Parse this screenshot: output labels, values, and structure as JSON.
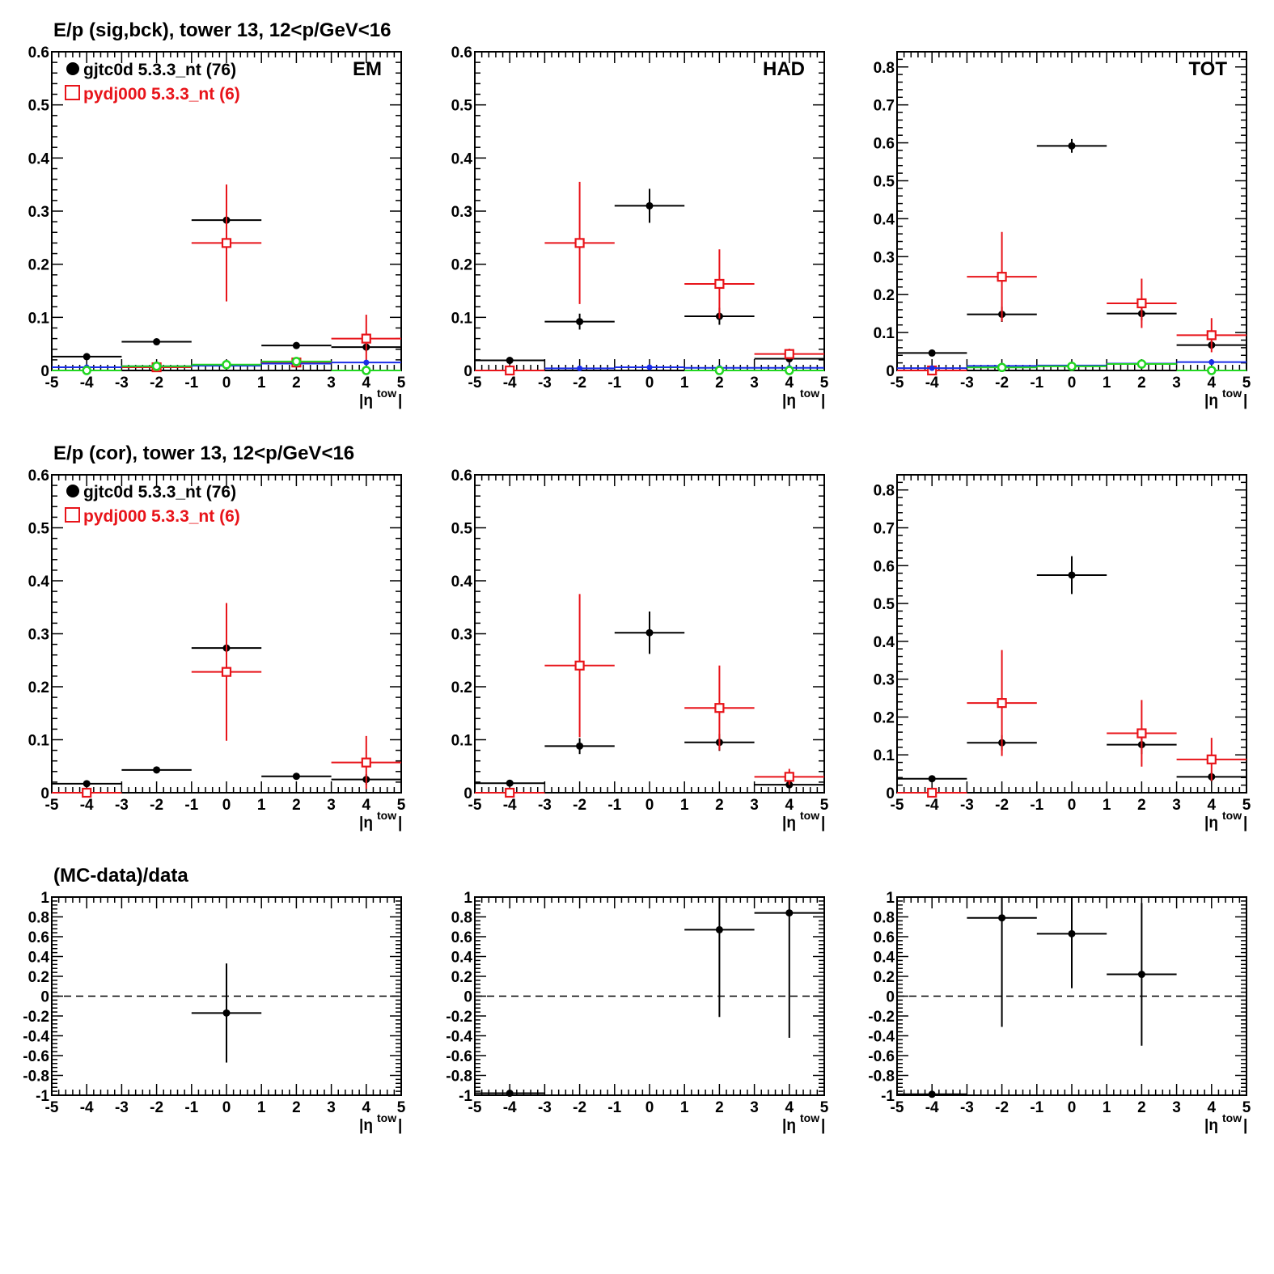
{
  "row_titles": [
    "E/p (sig,bck), tower 13, 12<p/GeV<16",
    "E/p (cor), tower 13, 12<p/GeV<16",
    "(MC-data)/data"
  ],
  "panel_labels": [
    "EM",
    "HAD",
    "TOT"
  ],
  "legend": {
    "data_label": "gjtc0d 5.3.3_nt (76)",
    "mc_label": "pydj000 5.3.3_nt (6)",
    "data_color": "#000000",
    "mc_color": "#e8141a"
  },
  "xlabel": {
    "main": "|η",
    "sup": "tow",
    "close": "|"
  },
  "colors": {
    "data": "#000000",
    "mc": "#e8141a",
    "blue": "#1a2ee8",
    "green": "#22d622"
  },
  "chart_data": [
    {
      "id": "sigbck-em",
      "type": "scatter",
      "xlim": [
        -5,
        5
      ],
      "ylim": [
        0,
        0.6
      ],
      "yticks": [
        0,
        0.1,
        0.2,
        0.3,
        0.4,
        0.5,
        0.6
      ],
      "ytick_labels": [
        "0",
        "0.1",
        "0.2",
        "0.3",
        "0.4",
        "0.5",
        "0.6"
      ],
      "xticks": [
        -5,
        -4,
        -3,
        -2,
        -1,
        0,
        1,
        2,
        3,
        4,
        5
      ],
      "label": "EM",
      "series": [
        {
          "role": "data",
          "marker": "dot",
          "color": "#000000",
          "x": [
            -4,
            -2,
            0,
            2,
            4
          ],
          "y": [
            0.026,
            0.054,
            0.283,
            0.047,
            0.044
          ],
          "err": [
            0.004,
            0.004,
            0.012,
            0.005,
            0.008
          ],
          "xerr": 1
        },
        {
          "role": "mc",
          "marker": "square",
          "color": "#e8141a",
          "x": [
            -2,
            0,
            2,
            4
          ],
          "y": [
            0.006,
            0.24,
            0.015,
            0.06
          ],
          "err": [
            0.004,
            0.11,
            0.006,
            0.045
          ],
          "xerr": 1
        },
        {
          "role": "blue",
          "marker": "dot-small",
          "color": "#1a2ee8",
          "x": [
            -4,
            -2,
            0,
            2,
            4
          ],
          "y": [
            0.006,
            0.008,
            0.009,
            0.013,
            0.015
          ],
          "err": [
            0.001,
            0.001,
            0.001,
            0.002,
            0.002
          ],
          "xerr": 1
        },
        {
          "role": "green",
          "marker": "circle",
          "color": "#22d622",
          "x": [
            -4,
            -2,
            0,
            2,
            4
          ],
          "y": [
            0.0,
            0.008,
            0.011,
            0.017,
            0.0
          ],
          "err": [
            0,
            0.002,
            0.002,
            0.002,
            0
          ],
          "xerr": 1
        }
      ]
    },
    {
      "id": "sigbck-had",
      "type": "scatter",
      "xlim": [
        -5,
        5
      ],
      "ylim": [
        0,
        0.6
      ],
      "yticks": [
        0,
        0.1,
        0.2,
        0.3,
        0.4,
        0.5,
        0.6
      ],
      "ytick_labels": [
        "0",
        "0.1",
        "0.2",
        "0.3",
        "0.4",
        "0.5",
        "0.6"
      ],
      "xticks": [
        -5,
        -4,
        -3,
        -2,
        -1,
        0,
        1,
        2,
        3,
        4,
        5
      ],
      "label": "HAD",
      "series": [
        {
          "role": "data",
          "marker": "dot",
          "color": "#000000",
          "x": [
            -4,
            -2,
            0,
            2,
            4
          ],
          "y": [
            0.019,
            0.092,
            0.31,
            0.102,
            0.022
          ],
          "err": [
            0.004,
            0.015,
            0.032,
            0.016,
            0.006
          ],
          "xerr": 1
        },
        {
          "role": "mc",
          "marker": "square",
          "color": "#e8141a",
          "x": [
            -4,
            -2,
            2,
            4
          ],
          "y": [
            0.0,
            0.24,
            0.163,
            0.031
          ],
          "err": [
            0.004,
            0.115,
            0.065,
            0.01
          ],
          "xerr": 1
        },
        {
          "role": "blue",
          "marker": "dot-small",
          "color": "#1a2ee8",
          "x": [
            -2,
            0,
            2,
            4
          ],
          "y": [
            0.004,
            0.006,
            0.005,
            0.005
          ],
          "err": [
            0.001,
            0.001,
            0.001,
            0.001
          ],
          "xerr": 1
        },
        {
          "role": "green",
          "marker": "circle",
          "color": "#22d622",
          "x": [
            2,
            4
          ],
          "y": [
            0.0,
            0.0
          ],
          "err": [
            0,
            0
          ],
          "xerr": 1
        }
      ]
    },
    {
      "id": "sigbck-tot",
      "type": "scatter",
      "xlim": [
        -5,
        5
      ],
      "ylim": [
        0,
        0.84
      ],
      "yticks": [
        0,
        0.1,
        0.2,
        0.3,
        0.4,
        0.5,
        0.6,
        0.7,
        0.8
      ],
      "ytick_labels": [
        "0",
        "0.1",
        "0.2",
        "0.3",
        "0.4",
        "0.5",
        "0.6",
        "0.7",
        "0.8"
      ],
      "xticks": [
        -5,
        -4,
        -3,
        -2,
        -1,
        0,
        1,
        2,
        3,
        4,
        5
      ],
      "label": "TOT",
      "series": [
        {
          "role": "data",
          "marker": "dot",
          "color": "#000000",
          "x": [
            -4,
            -2,
            0,
            2,
            4
          ],
          "y": [
            0.046,
            0.148,
            0.592,
            0.15,
            0.067
          ],
          "err": [
            0.004,
            0.02,
            0.018,
            0.018,
            0.01
          ],
          "xerr": 1
        },
        {
          "role": "mc",
          "marker": "square",
          "color": "#e8141a",
          "x": [
            -4,
            -2,
            2,
            4
          ],
          "y": [
            0.0,
            0.247,
            0.177,
            0.093
          ],
          "err": [
            0.004,
            0.118,
            0.065,
            0.045
          ],
          "xerr": 1
        },
        {
          "role": "blue",
          "marker": "dot-small",
          "color": "#1a2ee8",
          "x": [
            -4,
            -2,
            0,
            2,
            4
          ],
          "y": [
            0.006,
            0.012,
            0.013,
            0.018,
            0.022
          ],
          "err": [
            0.001,
            0.001,
            0.001,
            0.002,
            0.002
          ],
          "xerr": 1
        },
        {
          "role": "green",
          "marker": "circle",
          "color": "#22d622",
          "x": [
            -2,
            0,
            2,
            4
          ],
          "y": [
            0.008,
            0.011,
            0.017,
            0.0
          ],
          "err": [
            0.002,
            0.002,
            0.002,
            0
          ],
          "xerr": 1
        }
      ]
    },
    {
      "id": "cor-em",
      "type": "scatter",
      "xlim": [
        -5,
        5
      ],
      "ylim": [
        0,
        0.6
      ],
      "yticks": [
        0,
        0.1,
        0.2,
        0.3,
        0.4,
        0.5,
        0.6
      ],
      "ytick_labels": [
        "0",
        "0.1",
        "0.2",
        "0.3",
        "0.4",
        "0.5",
        "0.6"
      ],
      "xticks": [
        -5,
        -4,
        -3,
        -2,
        -1,
        0,
        1,
        2,
        3,
        4,
        5
      ],
      "label": "",
      "series": [
        {
          "role": "data",
          "marker": "dot",
          "color": "#000000",
          "x": [
            -4,
            -2,
            0,
            2,
            4
          ],
          "y": [
            0.017,
            0.043,
            0.273,
            0.031,
            0.025
          ],
          "err": [
            0.003,
            0.005,
            0.025,
            0.006,
            0.01
          ],
          "xerr": 1
        },
        {
          "role": "mc",
          "marker": "square",
          "color": "#e8141a",
          "x": [
            -4,
            0,
            4
          ],
          "y": [
            0.0,
            0.228,
            0.057
          ],
          "err": [
            0.0,
            0.13,
            0.05
          ],
          "xerr": 1
        }
      ]
    },
    {
      "id": "cor-had",
      "type": "scatter",
      "xlim": [
        -5,
        5
      ],
      "ylim": [
        0,
        0.6
      ],
      "yticks": [
        0,
        0.1,
        0.2,
        0.3,
        0.4,
        0.5,
        0.6
      ],
      "ytick_labels": [
        "0",
        "0.1",
        "0.2",
        "0.3",
        "0.4",
        "0.5",
        "0.6"
      ],
      "xticks": [
        -5,
        -4,
        -3,
        -2,
        -1,
        0,
        1,
        2,
        3,
        4,
        5
      ],
      "label": "",
      "series": [
        {
          "role": "data",
          "marker": "dot",
          "color": "#000000",
          "x": [
            -4,
            -2,
            0,
            2,
            4
          ],
          "y": [
            0.018,
            0.088,
            0.302,
            0.095,
            0.015
          ],
          "err": [
            0.004,
            0.015,
            0.04,
            0.016,
            0.005
          ],
          "xerr": 1
        },
        {
          "role": "mc",
          "marker": "square",
          "color": "#e8141a",
          "x": [
            -4,
            -2,
            2,
            4
          ],
          "y": [
            0.0,
            0.24,
            0.16,
            0.03
          ],
          "err": [
            0.0,
            0.135,
            0.08,
            0.015
          ],
          "xerr": 1
        }
      ]
    },
    {
      "id": "cor-tot",
      "type": "scatter",
      "xlim": [
        -5,
        5
      ],
      "ylim": [
        0,
        0.84
      ],
      "yticks": [
        0,
        0.1,
        0.2,
        0.3,
        0.4,
        0.5,
        0.6,
        0.7,
        0.8
      ],
      "ytick_labels": [
        "0",
        "0.1",
        "0.2",
        "0.3",
        "0.4",
        "0.5",
        "0.6",
        "0.7",
        "0.8"
      ],
      "xticks": [
        -5,
        -4,
        -3,
        -2,
        -1,
        0,
        1,
        2,
        3,
        4,
        5
      ],
      "label": "",
      "series": [
        {
          "role": "data",
          "marker": "dot",
          "color": "#000000",
          "x": [
            -4,
            -2,
            0,
            2,
            4
          ],
          "y": [
            0.037,
            0.132,
            0.575,
            0.127,
            0.042
          ],
          "err": [
            0.004,
            0.02,
            0.05,
            0.025,
            0.012
          ],
          "xerr": 1
        },
        {
          "role": "mc",
          "marker": "square",
          "color": "#e8141a",
          "x": [
            -4,
            -2,
            2,
            4
          ],
          "y": [
            0.0,
            0.237,
            0.157,
            0.088
          ],
          "err": [
            0.0,
            0.14,
            0.088,
            0.057
          ],
          "xerr": 1
        }
      ]
    },
    {
      "id": "ratio-em",
      "type": "scatter",
      "xlim": [
        -5,
        5
      ],
      "ylim": [
        -1,
        1
      ],
      "yticks": [
        -1,
        -0.8,
        -0.6,
        -0.4,
        -0.2,
        0,
        0.2,
        0.4,
        0.6,
        0.8,
        1
      ],
      "ytick_labels": [
        "-1",
        "-0.8",
        "-0.6",
        "-0.4",
        "-0.2",
        "0",
        "0.2",
        "0.4",
        "0.6",
        "0.8",
        "1"
      ],
      "xticks": [
        -5,
        -4,
        -3,
        -2,
        -1,
        0,
        1,
        2,
        3,
        4,
        5
      ],
      "label": "",
      "dashed_zero": true,
      "series": [
        {
          "role": "data",
          "marker": "dot",
          "color": "#000000",
          "x": [
            0
          ],
          "y": [
            -0.17
          ],
          "err": [
            0.5
          ],
          "xerr": 1
        }
      ]
    },
    {
      "id": "ratio-had",
      "type": "scatter",
      "xlim": [
        -5,
        5
      ],
      "ylim": [
        -1,
        1
      ],
      "yticks": [
        -1,
        -0.8,
        -0.6,
        -0.4,
        -0.2,
        0,
        0.2,
        0.4,
        0.6,
        0.8,
        1
      ],
      "ytick_labels": [
        "-1",
        "-0.8",
        "-0.6",
        "-0.4",
        "-0.2",
        "0",
        "0.2",
        "0.4",
        "0.6",
        "0.8",
        "1"
      ],
      "xticks": [
        -5,
        -4,
        -3,
        -2,
        -1,
        0,
        1,
        2,
        3,
        4,
        5
      ],
      "label": "",
      "dashed_zero": true,
      "series": [
        {
          "role": "data",
          "marker": "dot",
          "color": "#000000",
          "x": [
            -4,
            2,
            4
          ],
          "y": [
            -0.98,
            0.67,
            0.84
          ],
          "err": [
            0.0,
            0.88,
            1.26
          ],
          "xerr": 1
        }
      ]
    },
    {
      "id": "ratio-tot",
      "type": "scatter",
      "xlim": [
        -5,
        5
      ],
      "ylim": [
        -1,
        1
      ],
      "yticks": [
        -1,
        -0.8,
        -0.6,
        -0.4,
        -0.2,
        0,
        0.2,
        0.4,
        0.6,
        0.8,
        1
      ],
      "ytick_labels": [
        "-1",
        "-0.8",
        "-0.6",
        "-0.4",
        "-0.2",
        "0",
        "0.2",
        "0.4",
        "0.6",
        "0.8",
        "1"
      ],
      "xticks": [
        -5,
        -4,
        -3,
        -2,
        -1,
        0,
        1,
        2,
        3,
        4,
        5
      ],
      "label": "",
      "dashed_zero": true,
      "series": [
        {
          "role": "data",
          "marker": "dot",
          "color": "#000000",
          "x": [
            -4,
            -2,
            0,
            2
          ],
          "y": [
            -0.99,
            0.79,
            0.63,
            0.22
          ],
          "err": [
            0.0,
            1.1,
            0.55,
            0.72
          ],
          "xerr": 1
        }
      ]
    }
  ]
}
